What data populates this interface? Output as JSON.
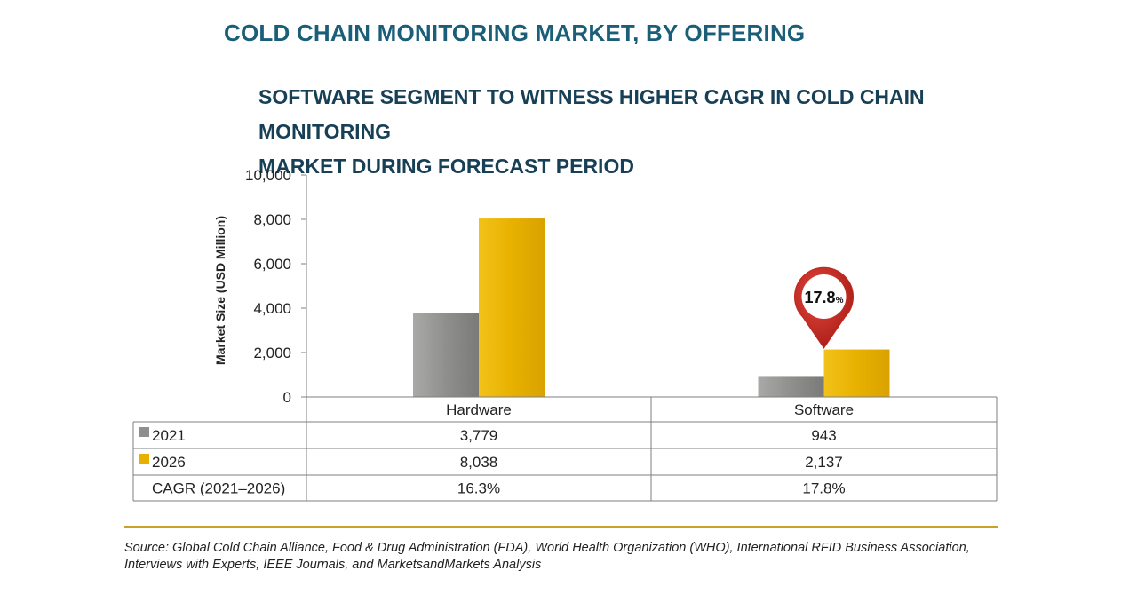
{
  "header": {
    "title": "COLD CHAIN MONITORING MARKET, BY OFFERING",
    "subtitle_line1": "SOFTWARE SEGMENT TO WITNESS HIGHER CAGR IN COLD CHAIN MONITORING",
    "subtitle_line2": "MARKET DURING FORECAST PERIOD"
  },
  "callout": {
    "value": "17.8",
    "unit": "%",
    "color": "#c0261e"
  },
  "footer": {
    "source": "Source: Global Cold Chain Alliance, Food & Drug Administration (FDA), World Health Organization (WHO), International RFID Business Association, Interviews with Experts, IEEE Journals, and MarketsandMarkets Analysis"
  },
  "chart_data": {
    "type": "bar",
    "title": "COLD CHAIN MONITORING MARKET, BY OFFERING",
    "xlabel": "",
    "ylabel": "Market Size (USD Million)",
    "ylim": [
      0,
      10000
    ],
    "yticks": [
      0,
      2000,
      4000,
      6000,
      8000,
      10000
    ],
    "ytick_labels": [
      "0",
      "2,000",
      "4,000",
      "6,000",
      "8,000",
      "10,000"
    ],
    "categories": [
      "Hardware",
      "Software"
    ],
    "series": [
      {
        "name": "2021",
        "values": [
          3779,
          943
        ],
        "labels": [
          "3,779",
          "943"
        ],
        "color": "#8e8e8c"
      },
      {
        "name": "2026",
        "values": [
          8038,
          2137
        ],
        "labels": [
          "8,038",
          "2,137"
        ],
        "color": "#e8b100"
      }
    ],
    "table_extra_row": {
      "name": "CAGR (2021–2026)",
      "values": [
        "16.3%",
        "17.8%"
      ]
    },
    "grid": false,
    "legend": "table-left"
  }
}
